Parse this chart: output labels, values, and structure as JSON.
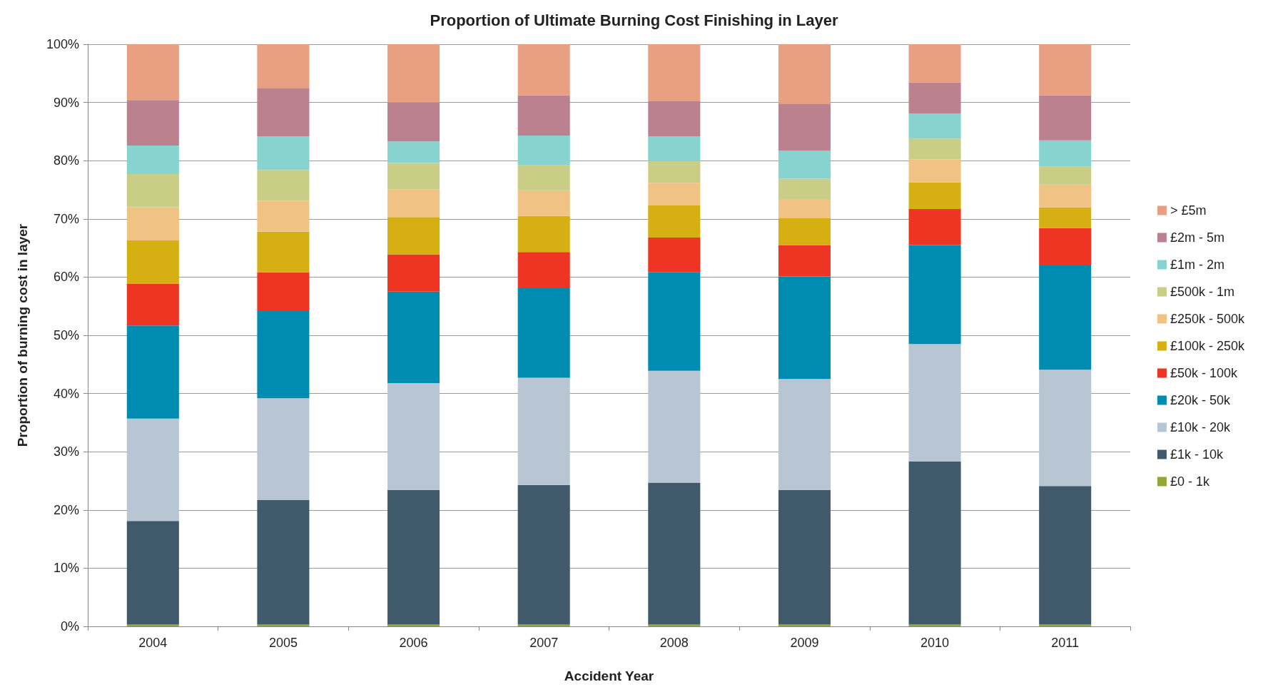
{
  "chart_data": {
    "type": "bar",
    "title": "Proportion of Ultimate Burning Cost Finishing in Layer",
    "xlabel": "Accident Year",
    "ylabel": "Proportion of burning cost in layer",
    "stacked": true,
    "categories": [
      "2004",
      "2005",
      "2006",
      "2007",
      "2008",
      "2009",
      "2010",
      "2011"
    ],
    "series": [
      {
        "name": "£0 - 1k",
        "color": "#8fa832",
        "values": [
          0.3,
          0.3,
          0.3,
          0.3,
          0.3,
          0.3,
          0.3,
          0.3
        ]
      },
      {
        "name": "£1k - 10k",
        "color": "#415a6b",
        "values": [
          17.8,
          21.4,
          23.1,
          24.0,
          24.4,
          23.1,
          28.0,
          23.8
        ]
      },
      {
        "name": "£10k - 20k",
        "color": "#b8c6d4",
        "values": [
          17.6,
          17.5,
          18.4,
          18.4,
          19.2,
          19.1,
          20.2,
          20.0
        ]
      },
      {
        "name": "£20k - 50k",
        "color": "#008bb0",
        "values": [
          16.0,
          15.1,
          15.7,
          15.4,
          16.9,
          17.6,
          17.0,
          17.9
        ]
      },
      {
        "name": "£50k - 100k",
        "color": "#ee3524",
        "values": [
          7.2,
          6.5,
          6.4,
          6.2,
          6.0,
          5.4,
          6.2,
          6.4
        ]
      },
      {
        "name": "£100k - 250k",
        "color": "#d6af13",
        "values": [
          7.4,
          7.0,
          6.4,
          6.2,
          5.5,
          4.6,
          4.6,
          3.6
        ]
      },
      {
        "name": "£250k - 500k",
        "color": "#f0c384",
        "values": [
          5.7,
          5.3,
          4.8,
          4.4,
          3.9,
          3.3,
          3.9,
          3.9
        ]
      },
      {
        "name": "£500k - 1m",
        "color": "#c9cd86",
        "values": [
          5.7,
          5.3,
          4.5,
          4.3,
          3.8,
          3.5,
          3.6,
          3.1
        ]
      },
      {
        "name": "£1m - 2m",
        "color": "#86d3d0",
        "values": [
          4.9,
          5.8,
          3.7,
          5.1,
          4.2,
          4.8,
          4.3,
          4.5
        ]
      },
      {
        "name": "£2m - 5m",
        "color": "#bb818f",
        "values": [
          7.8,
          8.2,
          6.7,
          6.9,
          6.0,
          8.1,
          5.3,
          7.7
        ]
      },
      {
        "name": "> £5m",
        "color": "#e89f82",
        "values": [
          9.6,
          7.6,
          10.0,
          8.8,
          9.8,
          10.2,
          6.6,
          8.8
        ]
      }
    ],
    "ylim": [
      0,
      100
    ],
    "yticks": [
      {
        "value": 0,
        "label": "0%"
      },
      {
        "value": 10,
        "label": "10%"
      },
      {
        "value": 20,
        "label": "20%"
      },
      {
        "value": 30,
        "label": "30%"
      },
      {
        "value": 40,
        "label": "40%"
      },
      {
        "value": 50,
        "label": "50%"
      },
      {
        "value": 60,
        "label": "60%"
      },
      {
        "value": 70,
        "label": "70%"
      },
      {
        "value": 80,
        "label": "80%"
      },
      {
        "value": 90,
        "label": "90%"
      },
      {
        "value": 100,
        "label": "100%"
      }
    ],
    "grid": "y",
    "legend": "right"
  }
}
